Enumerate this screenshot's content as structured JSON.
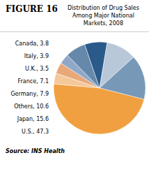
{
  "chart_data": {
    "type": "pie",
    "title": "FIGURE 16",
    "subtitle": "Distribution of Drug Sales\nAmong Major National\nMarkets, 2008",
    "categories": [
      "Canada",
      "Italy",
      "U.K.",
      "France",
      "Germany",
      "Others",
      "Japan",
      "U.S."
    ],
    "values": [
      3.8,
      3.9,
      3.5,
      7.1,
      7.9,
      10.6,
      15.6,
      47.3
    ],
    "colors": [
      "#f5c89a",
      "#e8a878",
      "#8fa8c8",
      "#6688aa",
      "#2a5a8a",
      "#b8c8d8",
      "#7898b8",
      "#f0a040"
    ],
    "annotations": [
      "Source: INS Health"
    ]
  }
}
